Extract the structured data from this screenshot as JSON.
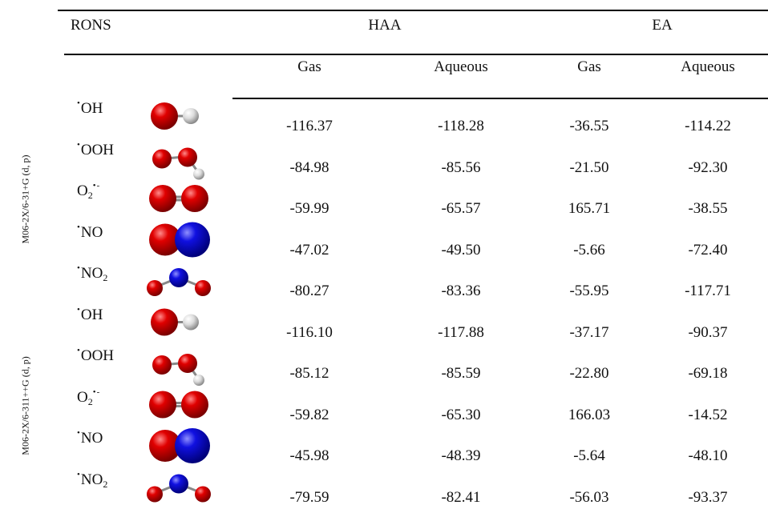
{
  "header": {
    "rons": "RONS",
    "haa": "HAA",
    "ea": "EA",
    "sub": [
      "Gas",
      "Aqueous",
      "Gas",
      "Aqueous"
    ]
  },
  "groups": [
    {
      "method": "M06-2X/6-31+G (d, p)",
      "rows": [
        {
          "species": {
            "dot": "•",
            "text": "OH"
          },
          "values": [
            "-116.37",
            "-118.28",
            "-36.55",
            "-114.22"
          ]
        },
        {
          "species": {
            "dot": "•",
            "text": "OOH"
          },
          "values": [
            "-84.98",
            "-85.56",
            "-21.50",
            "-92.30"
          ]
        },
        {
          "species": {
            "text": "O",
            "sub": "2",
            "sup": "•-"
          },
          "values": [
            "-59.99",
            "-65.57",
            "165.71",
            "-38.55"
          ]
        },
        {
          "species": {
            "dot": "•",
            "text": "NO"
          },
          "values": [
            "-47.02",
            "-49.50",
            "-5.66",
            "-72.40"
          ]
        },
        {
          "species": {
            "dot": "•",
            "text": "NO",
            "sub": "2"
          },
          "values": [
            "-80.27",
            "-83.36",
            "-55.95",
            "-117.71"
          ]
        }
      ]
    },
    {
      "method": "M06-2X/6-311++G (d, p)",
      "rows": [
        {
          "species": {
            "dot": "•",
            "text": "OH"
          },
          "values": [
            "-116.10",
            "-117.88",
            "-37.17",
            "-90.37"
          ]
        },
        {
          "species": {
            "dot": "•",
            "text": "OOH"
          },
          "values": [
            "-85.12",
            "-85.59",
            "-22.80",
            "-69.18"
          ]
        },
        {
          "species": {
            "text": "O",
            "sub": "2",
            "sup": "•-"
          },
          "values": [
            "-59.82",
            "-65.30",
            "166.03",
            "-14.52"
          ]
        },
        {
          "species": {
            "dot": "•",
            "text": "NO"
          },
          "values": [
            "-45.98",
            "-48.39",
            "-5.64",
            "-48.10"
          ]
        },
        {
          "species": {
            "dot": "•",
            "text": "NO",
            "sub": "2"
          },
          "values": [
            "-79.59",
            "-82.41",
            "-56.03",
            "-93.37"
          ]
        }
      ]
    }
  ]
}
